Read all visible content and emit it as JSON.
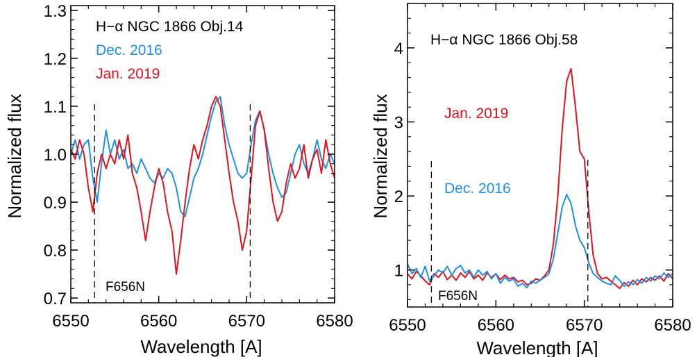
{
  "chart_data": [
    {
      "type": "line",
      "title": "",
      "xlabel": "Wavelength [A]",
      "ylabel": "Normalized flux",
      "xlim": [
        6550,
        6580
      ],
      "ylim": [
        0.69,
        1.31
      ],
      "xticks": [
        6550,
        6560,
        6570,
        6580
      ],
      "yticks": [
        0.7,
        0.8,
        0.9,
        1.0,
        1.1,
        1.2,
        1.3
      ],
      "ytick_labels": [
        "0.7",
        "0.8",
        "0.9",
        "1.0",
        "1.1",
        "1.2",
        "1.3"
      ],
      "annotations": {
        "object": "H−α NGC 1866 Obj.14",
        "filter": "F656N"
      },
      "filter_lines": [
        6552.7,
        6570.4
      ],
      "colors": {
        "Dec. 2016": "#1E8FE8",
        "Jan. 2019": "#E8101A"
      },
      "series": [
        {
          "name": "Dec. 2016",
          "x": [
            6550.0,
            6550.5,
            6551.0,
            6551.5,
            6552.0,
            6552.5,
            6553.0,
            6553.5,
            6554.0,
            6554.5,
            6555.0,
            6555.5,
            6556.0,
            6556.5,
            6557.0,
            6557.5,
            6558.0,
            6558.5,
            6559.0,
            6559.5,
            6560.0,
            6560.5,
            6561.0,
            6561.5,
            6562.0,
            6562.5,
            6563.0,
            6563.5,
            6564.0,
            6564.5,
            6565.0,
            6565.5,
            6566.0,
            6566.5,
            6567.0,
            6567.5,
            6568.0,
            6568.5,
            6569.0,
            6569.5,
            6570.0,
            6570.5,
            6571.0,
            6571.5,
            6572.0,
            6572.5,
            6573.0,
            6573.5,
            6574.0,
            6574.5,
            6575.0,
            6575.5,
            6576.0,
            6576.5,
            6577.0,
            6577.5,
            6578.0,
            6578.5,
            6579.0,
            6579.5,
            6580.0
          ],
          "y": [
            1.0,
            1.03,
            0.99,
            1.02,
            1.03,
            0.95,
            0.9,
            0.98,
            1.05,
            1.0,
            1.03,
            0.99,
            1.01,
            0.97,
            0.98,
            0.96,
            0.99,
            0.97,
            0.95,
            0.94,
            0.96,
            0.95,
            0.97,
            0.96,
            0.93,
            0.88,
            0.87,
            0.91,
            0.95,
            0.97,
            1.0,
            1.04,
            1.08,
            1.11,
            1.12,
            1.06,
            1.02,
            0.99,
            0.96,
            0.95,
            0.96,
            1.02,
            1.07,
            1.09,
            1.05,
            1.0,
            0.96,
            0.93,
            0.91,
            0.92,
            0.96,
            1.0,
            1.02,
            0.98,
            0.96,
            0.99,
            1.03,
            0.99,
            0.97,
            1.0,
            0.98
          ]
        },
        {
          "name": "Jan. 2019",
          "x": [
            6550.0,
            6550.5,
            6551.0,
            6551.5,
            6552.0,
            6552.5,
            6553.0,
            6553.5,
            6554.0,
            6554.5,
            6555.0,
            6555.5,
            6556.0,
            6556.5,
            6557.0,
            6557.5,
            6558.0,
            6558.5,
            6559.0,
            6559.5,
            6560.0,
            6560.5,
            6561.0,
            6561.5,
            6562.0,
            6562.5,
            6563.0,
            6563.5,
            6564.0,
            6564.5,
            6565.0,
            6565.5,
            6566.0,
            6566.5,
            6567.0,
            6567.5,
            6568.0,
            6568.5,
            6569.0,
            6569.5,
            6570.0,
            6570.5,
            6571.0,
            6571.5,
            6572.0,
            6572.5,
            6573.0,
            6573.5,
            6574.0,
            6574.5,
            6575.0,
            6575.5,
            6576.0,
            6576.5,
            6577.0,
            6577.5,
            6578.0,
            6578.5,
            6579.0,
            6579.5,
            6580.0
          ],
          "y": [
            1.01,
            0.99,
            1.03,
            1.0,
            0.93,
            0.88,
            0.96,
            1.0,
            0.97,
            1.0,
            0.98,
            1.03,
            0.99,
            1.04,
            0.96,
            0.93,
            0.88,
            0.82,
            0.88,
            0.93,
            0.97,
            0.94,
            0.88,
            0.84,
            0.75,
            0.82,
            0.9,
            0.97,
            1.02,
            0.99,
            1.03,
            1.06,
            1.1,
            1.12,
            1.1,
            1.03,
            0.96,
            0.9,
            0.86,
            0.8,
            0.84,
            0.95,
            1.06,
            1.09,
            1.05,
            0.97,
            0.9,
            0.86,
            0.88,
            0.94,
            0.98,
            0.95,
            0.97,
            1.02,
            0.95,
            0.99,
            1.01,
            0.96,
            1.03,
            0.98,
            0.95
          ]
        }
      ],
      "grid": false,
      "legend": "top-left, text labels"
    },
    {
      "type": "line",
      "title": "",
      "xlabel": "Wavelength [A]",
      "ylabel": "Normalized flux",
      "xlim": [
        6550,
        6580
      ],
      "ylim": [
        0.5,
        4.6
      ],
      "xticks": [
        6550,
        6560,
        6570,
        6580
      ],
      "yticks": [
        1,
        2,
        3,
        4
      ],
      "annotations": {
        "object": "H−α NGC 1866 Obj.58",
        "filter": "F656N"
      },
      "filter_lines": [
        6552.7,
        6570.4
      ],
      "colors": {
        "Dec. 2016": "#1E8FE8",
        "Jan. 2019": "#E8101A"
      },
      "series": [
        {
          "name": "Jan. 2019",
          "x": [
            6550.0,
            6550.5,
            6551.0,
            6551.5,
            6552.0,
            6552.5,
            6553.0,
            6553.5,
            6554.0,
            6554.5,
            6555.0,
            6555.5,
            6556.0,
            6556.5,
            6557.0,
            6557.5,
            6558.0,
            6558.5,
            6559.0,
            6559.5,
            6560.0,
            6560.5,
            6561.0,
            6561.5,
            6562.0,
            6562.5,
            6563.0,
            6563.5,
            6564.0,
            6564.5,
            6565.0,
            6565.5,
            6566.0,
            6566.5,
            6567.0,
            6567.5,
            6568.0,
            6568.5,
            6569.0,
            6569.5,
            6570.0,
            6570.5,
            6571.0,
            6571.5,
            6572.0,
            6572.5,
            6573.0,
            6573.5,
            6574.0,
            6574.5,
            6575.0,
            6575.5,
            6576.0,
            6576.5,
            6577.0,
            6577.5,
            6578.0,
            6578.5,
            6579.0,
            6579.5,
            6580.0
          ],
          "y": [
            0.95,
            0.88,
            0.98,
            0.92,
            0.85,
            0.8,
            0.95,
            0.9,
            0.98,
            0.87,
            0.93,
            0.86,
            0.96,
            0.9,
            0.98,
            0.88,
            0.93,
            0.86,
            0.96,
            0.9,
            0.95,
            0.87,
            0.93,
            0.88,
            0.9,
            0.84,
            0.86,
            0.8,
            0.82,
            0.88,
            0.86,
            0.92,
            1.0,
            1.35,
            2.0,
            2.9,
            3.55,
            3.72,
            3.2,
            2.6,
            2.5,
            1.8,
            1.2,
            0.95,
            0.88,
            0.9,
            0.85,
            0.8,
            0.75,
            0.83,
            0.78,
            0.86,
            0.8,
            0.88,
            0.84,
            0.9,
            0.86,
            0.92,
            0.85,
            0.95,
            0.88
          ]
        },
        {
          "name": "Dec. 2016",
          "x": [
            6550.0,
            6550.5,
            6551.0,
            6551.5,
            6552.0,
            6552.5,
            6553.0,
            6553.5,
            6554.0,
            6554.5,
            6555.0,
            6555.5,
            6556.0,
            6556.5,
            6557.0,
            6557.5,
            6558.0,
            6558.5,
            6559.0,
            6559.5,
            6560.0,
            6560.5,
            6561.0,
            6561.5,
            6562.0,
            6562.5,
            6563.0,
            6563.5,
            6564.0,
            6564.5,
            6565.0,
            6565.5,
            6566.0,
            6566.5,
            6567.0,
            6567.5,
            6568.0,
            6568.5,
            6569.0,
            6569.5,
            6570.0,
            6570.5,
            6571.0,
            6571.5,
            6572.0,
            6572.5,
            6573.0,
            6573.5,
            6574.0,
            6574.5,
            6575.0,
            6575.5,
            6576.0,
            6576.5,
            6577.0,
            6577.5,
            6578.0,
            6578.5,
            6579.0,
            6579.5,
            6580.0
          ],
          "y": [
            1.08,
            0.95,
            1.02,
            0.9,
            1.05,
            0.85,
            0.92,
            1.0,
            0.96,
            1.05,
            0.93,
            1.02,
            1.06,
            0.96,
            1.0,
            0.9,
            1.0,
            0.93,
            0.98,
            0.88,
            0.95,
            0.82,
            0.9,
            0.85,
            0.88,
            0.78,
            0.82,
            0.76,
            0.85,
            0.82,
            0.86,
            0.9,
            0.95,
            1.15,
            1.5,
            1.85,
            2.02,
            1.9,
            1.6,
            1.4,
            1.3,
            1.1,
            0.95,
            0.9,
            0.85,
            0.82,
            0.8,
            0.92,
            0.86,
            0.78,
            0.84,
            0.8,
            0.87,
            0.82,
            0.9,
            0.85,
            0.92,
            0.88,
            0.96,
            0.9,
            0.95
          ]
        }
      ],
      "grid": false,
      "legend": "left, text labels"
    }
  ]
}
